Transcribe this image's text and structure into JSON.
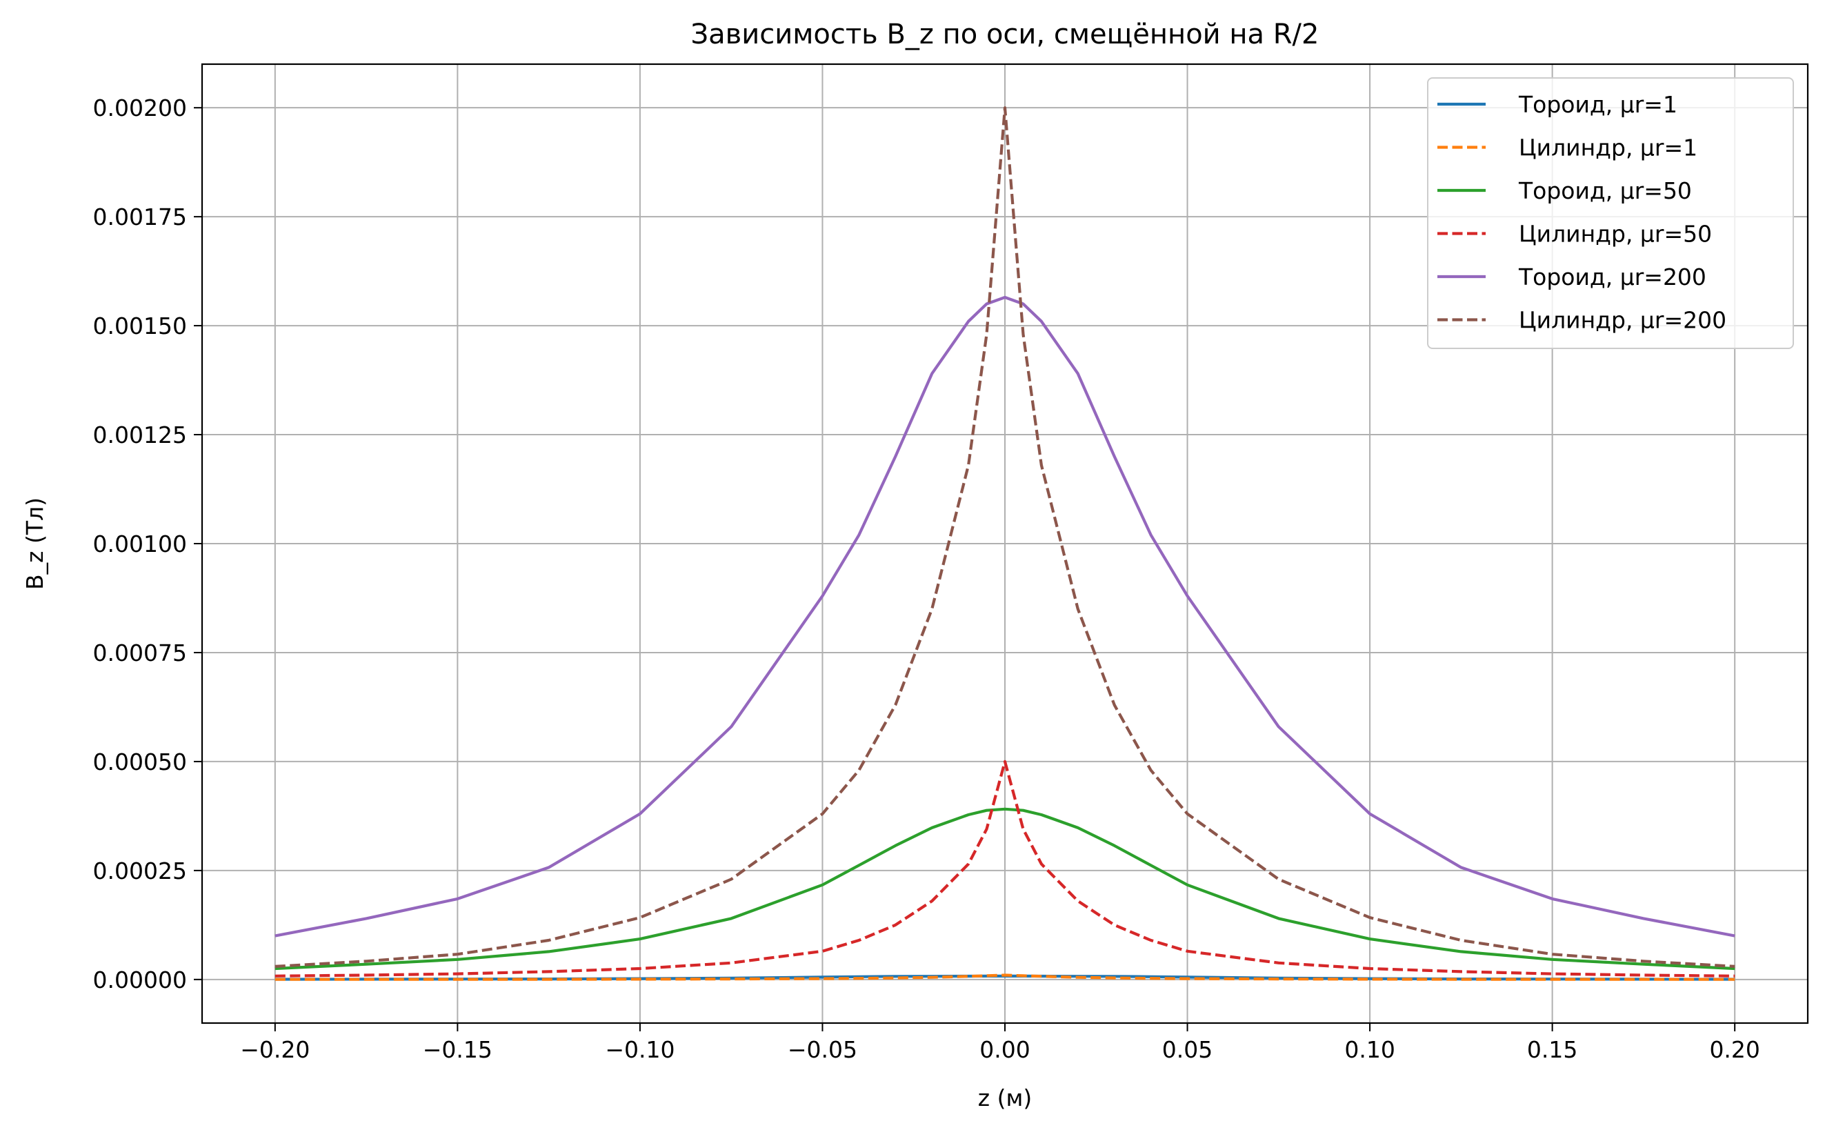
{
  "chart_data": {
    "type": "line",
    "title": "Зависимость B_z по оси, смещённой на R/2",
    "xlabel": "z (м)",
    "ylabel": "B_z (Тл)",
    "xlim": [
      -0.22,
      0.22
    ],
    "ylim": [
      -0.0001,
      0.0021
    ],
    "grid": true,
    "legend_position": "top-right",
    "x_ticks": [
      "−0.20",
      "−0.15",
      "−0.10",
      "−0.05",
      "0.00",
      "0.05",
      "0.10",
      "0.15",
      "0.20"
    ],
    "y_ticks": [
      "0.00000",
      "0.00025",
      "0.00050",
      "0.00075",
      "0.00100",
      "0.00125",
      "0.00150",
      "0.00175",
      "0.00200"
    ],
    "x": [
      -0.2,
      -0.175,
      -0.15,
      -0.125,
      -0.1,
      -0.075,
      -0.05,
      -0.04,
      -0.03,
      -0.02,
      -0.01,
      -0.005,
      0,
      0.005,
      0.01,
      0.02,
      0.03,
      0.04,
      0.05,
      0.075,
      0.1,
      0.125,
      0.15,
      0.175,
      0.2
    ],
    "series": [
      {
        "name": "Тороид, μr=1",
        "color": "#1f77b4",
        "dash": "solid",
        "values": [
          5e-07,
          7e-07,
          9e-07,
          1.2e-06,
          1.9e-06,
          3.2e-06,
          5.4e-06,
          6.3e-06,
          7.2e-06,
          7.3e-06,
          7.7e-06,
          7.8e-06,
          7.8e-06,
          7.8e-06,
          7.7e-06,
          7.3e-06,
          7.2e-06,
          6.3e-06,
          5.4e-06,
          3.2e-06,
          1.9e-06,
          1.2e-06,
          9e-07,
          7e-07,
          5e-07
        ]
      },
      {
        "name": "Цилиндр, μr=1",
        "color": "#ff7f0e",
        "dash": "dashed",
        "values": [
          2e-07,
          3e-07,
          3e-07,
          4e-07,
          7e-07,
          1.1e-06,
          2e-06,
          2.6e-06,
          3.5e-06,
          5e-06,
          7.3e-06,
          8.5e-06,
          1e-05,
          8.5e-06,
          7.3e-06,
          5e-06,
          3.5e-06,
          2.6e-06,
          2e-06,
          1.1e-06,
          7e-07,
          4e-07,
          3e-07,
          3e-07,
          2e-07
        ]
      },
      {
        "name": "Тороид, μr=50",
        "color": "#2ca02c",
        "dash": "solid",
        "values": [
          2.5e-05,
          3.5e-05,
          4.6e-05,
          6.4e-05,
          9.3e-05,
          0.00014,
          0.000217,
          0.000262,
          0.000307,
          0.000348,
          0.000378,
          0.000388,
          0.000391,
          0.000388,
          0.000378,
          0.000348,
          0.000307,
          0.000262,
          0.000217,
          0.00014,
          9.3e-05,
          6.4e-05,
          4.6e-05,
          3.5e-05,
          2.5e-05
        ]
      },
      {
        "name": "Цилиндр, μr=50",
        "color": "#d62728",
        "dash": "dashed",
        "values": [
          8e-06,
          1e-05,
          1.3e-05,
          1.8e-05,
          2.5e-05,
          3.8e-05,
          6.5e-05,
          9e-05,
          0.000125,
          0.00018,
          0.000265,
          0.000345,
          0.0005,
          0.000345,
          0.000265,
          0.00018,
          0.000125,
          9e-05,
          6.5e-05,
          3.8e-05,
          2.5e-05,
          1.8e-05,
          1.3e-05,
          1e-05,
          8e-06
        ]
      },
      {
        "name": "Тороид, μr=200",
        "color": "#9467bd",
        "dash": "solid",
        "values": [
          0.0001,
          0.00014,
          0.000185,
          0.000257,
          0.00038,
          0.00058,
          0.00088,
          0.00102,
          0.0012,
          0.00139,
          0.00151,
          0.00155,
          0.001565,
          0.00155,
          0.00151,
          0.00139,
          0.0012,
          0.00102,
          0.00088,
          0.00058,
          0.00038,
          0.000257,
          0.000185,
          0.00014,
          0.0001
        ]
      },
      {
        "name": "Цилиндр, μr=200",
        "color": "#8c564b",
        "dash": "dashed",
        "values": [
          3e-05,
          4.2e-05,
          5.8e-05,
          9e-05,
          0.000142,
          0.00023,
          0.00038,
          0.00048,
          0.00063,
          0.00085,
          0.00118,
          0.00148,
          0.002,
          0.00148,
          0.00118,
          0.00085,
          0.00063,
          0.00048,
          0.00038,
          0.00023,
          0.000142,
          9e-05,
          5.8e-05,
          4.2e-05,
          3e-05
        ]
      }
    ]
  }
}
